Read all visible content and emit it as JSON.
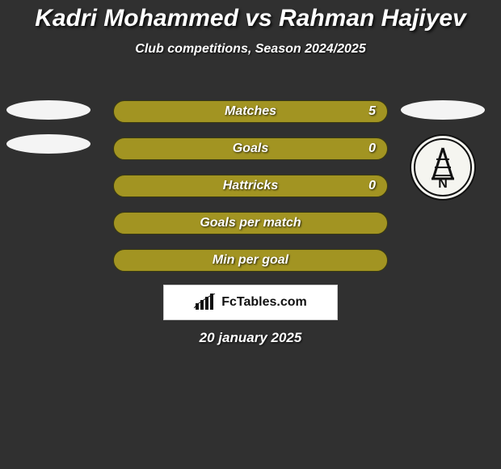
{
  "title": {
    "text": "Kadri Mohammed vs Rahman Hajiyev",
    "fontsize": 30,
    "color": "#ffffff"
  },
  "subtitle": {
    "text": "Club competitions, Season 2024/2025",
    "fontsize": 16,
    "color": "#ffffff"
  },
  "background_color": "#303030",
  "bars": [
    {
      "label": "Matches",
      "left": "",
      "right": "5",
      "bg": "#a29422"
    },
    {
      "label": "Goals",
      "left": "",
      "right": "0",
      "bg": "#a29422"
    },
    {
      "label": "Hattricks",
      "left": "",
      "right": "0",
      "bg": "#a29422"
    },
    {
      "label": "Goals per match",
      "left": "",
      "right": "",
      "bg": "#a29422"
    },
    {
      "label": "Min per goal",
      "left": "",
      "right": "",
      "bg": "#a29422"
    }
  ],
  "bar_style": {
    "height": 28,
    "border_radius": 14,
    "label_fontsize": 16,
    "label_color": "#ffffff",
    "border_color": "#3a3a12"
  },
  "left_player": {
    "placeholders": 2,
    "placeholder_color": "#f4f4f4"
  },
  "right_player": {
    "placeholders": 1,
    "placeholder_color": "#f4f4f4",
    "club_badge": {
      "bg": "#f5f5f0",
      "letter": "N",
      "letter_color": "#111111"
    }
  },
  "brand": {
    "text": "FcTables.com",
    "box_bg": "#ffffff",
    "text_color": "#111111"
  },
  "date": {
    "text": "20 january 2025",
    "fontsize": 17,
    "color": "#ffffff"
  }
}
